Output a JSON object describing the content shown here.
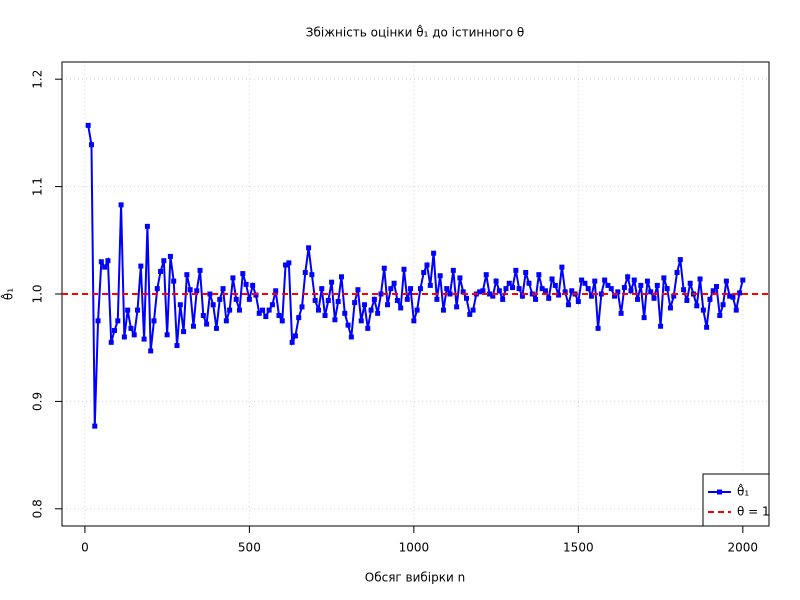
{
  "chart_data": {
    "type": "line",
    "title": "Збіжність оцінки θ̂₁ до істинного θ",
    "xlabel": "Обсяг вибірки n",
    "ylabel": "θ̂₁",
    "x": [
      10,
      20,
      30,
      40,
      50,
      60,
      70,
      80,
      90,
      100,
      110,
      120,
      130,
      140,
      150,
      160,
      170,
      180,
      190,
      200,
      210,
      220,
      230,
      240,
      250,
      260,
      270,
      280,
      290,
      300,
      310,
      320,
      330,
      340,
      350,
      360,
      370,
      380,
      390,
      400,
      410,
      420,
      430,
      440,
      450,
      460,
      470,
      480,
      490,
      500,
      510,
      520,
      530,
      540,
      550,
      560,
      570,
      580,
      590,
      600,
      610,
      620,
      630,
      640,
      650,
      660,
      670,
      680,
      690,
      700,
      710,
      720,
      730,
      740,
      750,
      760,
      770,
      780,
      790,
      800,
      810,
      820,
      830,
      840,
      850,
      860,
      870,
      880,
      890,
      900,
      910,
      920,
      930,
      940,
      950,
      960,
      970,
      980,
      990,
      1000,
      1010,
      1020,
      1030,
      1040,
      1050,
      1060,
      1070,
      1080,
      1090,
      1100,
      1110,
      1120,
      1130,
      1140,
      1150,
      1160,
      1170,
      1180,
      1190,
      1200,
      1210,
      1220,
      1230,
      1240,
      1250,
      1260,
      1270,
      1280,
      1290,
      1300,
      1310,
      1320,
      1330,
      1340,
      1350,
      1360,
      1370,
      1380,
      1390,
      1400,
      1410,
      1420,
      1430,
      1440,
      1450,
      1460,
      1470,
      1480,
      1490,
      1500,
      1510,
      1520,
      1530,
      1540,
      1550,
      1560,
      1570,
      1580,
      1590,
      1600,
      1610,
      1620,
      1630,
      1640,
      1650,
      1660,
      1670,
      1680,
      1690,
      1700,
      1710,
      1720,
      1730,
      1740,
      1750,
      1760,
      1770,
      1780,
      1790,
      1800,
      1810,
      1820,
      1830,
      1840,
      1850,
      1860,
      1870,
      1880,
      1890,
      1900,
      1910,
      1920,
      1930,
      1940,
      1950,
      1960,
      1970,
      1980,
      1990,
      2000
    ],
    "series": [
      {
        "name": "θ̂₁",
        "color": "#0000ff",
        "values": [
          1.157,
          1.139,
          0.877,
          0.975,
          1.03,
          1.025,
          1.031,
          0.955,
          0.966,
          0.975,
          1.083,
          0.96,
          0.985,
          0.968,
          0.962,
          0.985,
          1.026,
          0.958,
          1.063,
          0.947,
          0.975,
          1.005,
          1.021,
          1.031,
          0.962,
          1.035,
          1.012,
          0.952,
          0.99,
          0.965,
          1.018,
          1.004,
          0.97,
          1.003,
          1.022,
          0.98,
          0.972,
          1.0,
          0.99,
          0.968,
          0.995,
          1.005,
          0.975,
          0.985,
          1.015,
          0.995,
          0.985,
          1.019,
          1.009,
          0.995,
          1.008,
          0.999,
          0.982,
          0.985,
          0.979,
          0.985,
          0.99,
          1.003,
          0.98,
          0.975,
          1.027,
          1.029,
          0.955,
          0.961,
          0.978,
          0.988,
          1.02,
          1.043,
          1.018,
          0.994,
          0.985,
          1.005,
          0.98,
          0.994,
          1.011,
          0.976,
          0.993,
          1.016,
          0.982,
          0.971,
          0.96,
          0.992,
          1.004,
          0.975,
          0.99,
          0.968,
          0.985,
          0.995,
          0.982,
          1.0,
          1.024,
          0.99,
          1.005,
          1.01,
          0.994,
          0.987,
          1.023,
          0.995,
          1.005,
          0.975,
          0.985,
          1.005,
          1.02,
          1.027,
          1.008,
          1.038,
          0.995,
          1.017,
          0.985,
          1.005,
          1.0,
          1.022,
          0.988,
          1.015,
          1.002,
          0.996,
          0.981,
          0.985,
          1.0,
          1.002,
          1.003,
          1.018,
          1.0,
          0.998,
          1.012,
          1.003,
          0.995,
          1.005,
          1.01,
          1.006,
          1.022,
          1.005,
          0.998,
          1.02,
          1.01,
          1.0,
          0.995,
          1.018,
          1.005,
          1.003,
          0.996,
          1.014,
          1.008,
          0.999,
          1.025,
          1.002,
          0.99,
          1.003,
          1.0,
          0.993,
          1.013,
          1.01,
          1.005,
          0.998,
          1.012,
          0.968,
          1.0,
          1.013,
          1.008,
          1.005,
          0.998,
          1.002,
          0.982,
          1.006,
          1.016,
          1.003,
          1.013,
          0.995,
          1.008,
          0.978,
          1.012,
          1.002,
          0.996,
          1.008,
          0.97,
          1.015,
          1.005,
          0.987,
          0.998,
          1.02,
          1.032,
          1.004,
          0.994,
          1.01,
          1.0,
          0.989,
          1.014,
          0.985,
          0.969,
          0.995,
          1.003,
          1.007,
          0.98,
          0.99,
          1.012,
          0.998,
          0.997,
          0.985,
          1.001,
          1.013
        ]
      },
      {
        "name": "θ = 1",
        "color": "#ff0000",
        "hline": 1
      }
    ],
    "xlim": [
      -69.6,
      2079.6
    ],
    "xticks": [
      0,
      500,
      1000,
      1500,
      2000
    ],
    "ylim": [
      0.784,
      1.216
    ],
    "yticks": [
      0.8,
      0.9,
      {
        "value": 1,
        "label": "1.0"
      },
      1.1,
      1.2
    ],
    "grid": true,
    "legend": "bottom-right"
  }
}
